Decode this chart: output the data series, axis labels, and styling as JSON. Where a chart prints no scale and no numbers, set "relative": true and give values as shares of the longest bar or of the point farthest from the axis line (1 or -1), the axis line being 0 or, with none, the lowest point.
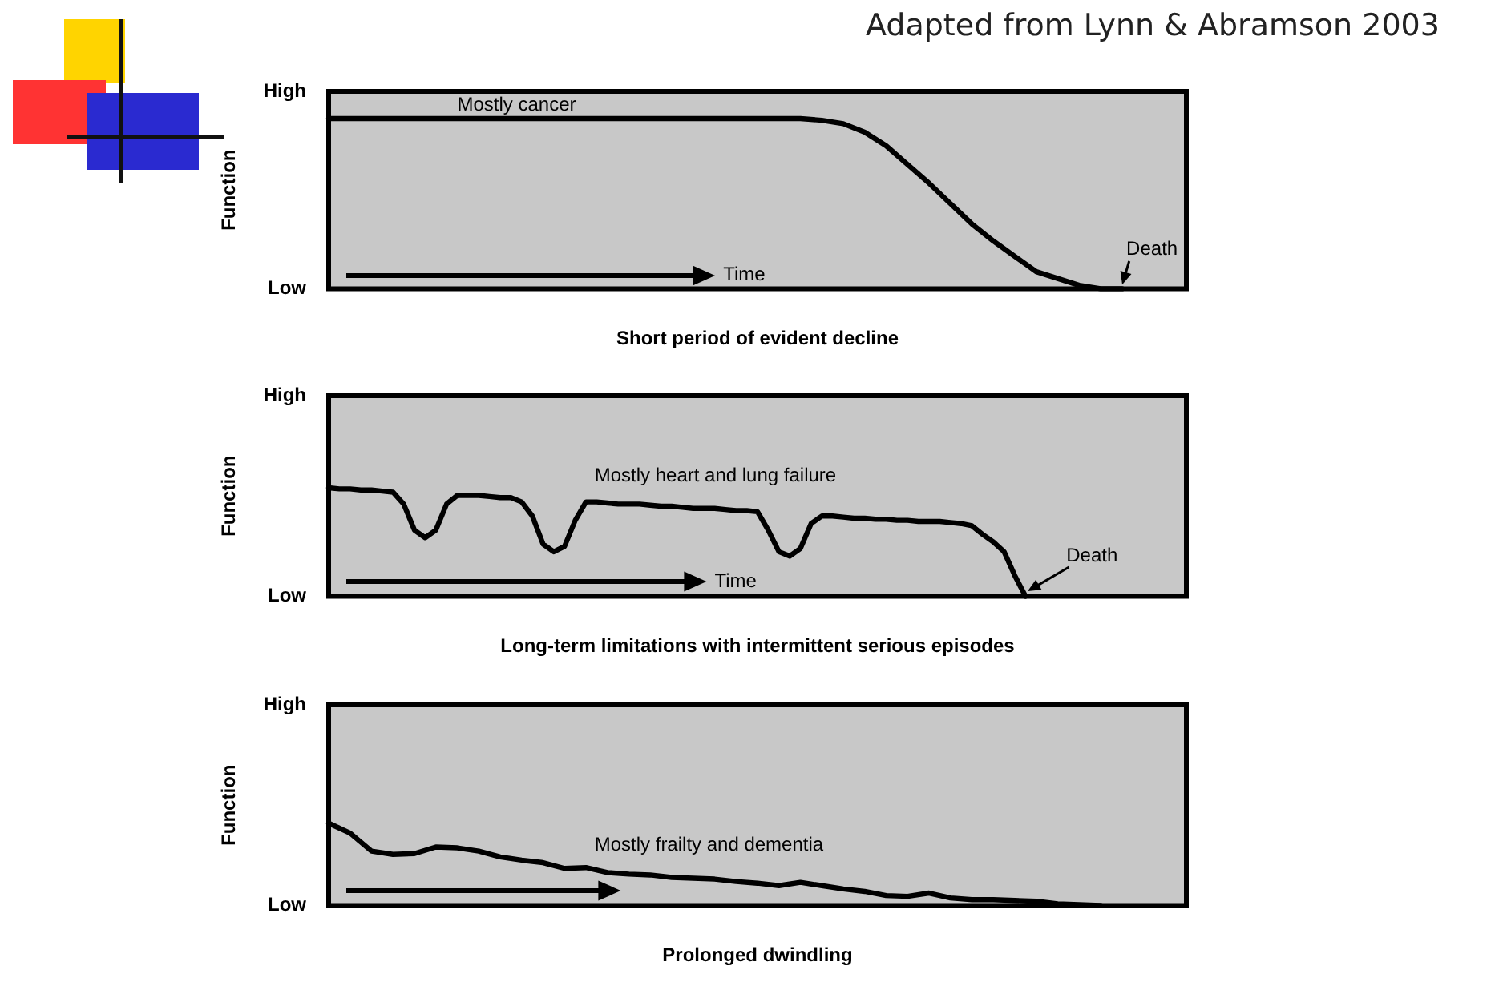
{
  "chart_data": [
    {
      "type": "line",
      "relative": true,
      "xlabel": "Short period of evident decline",
      "ylabel": "Function",
      "legend": false,
      "marker": "none",
      "line_style": "solid",
      "categories": [
        null,
        null,
        null,
        null,
        null,
        null,
        null,
        null,
        null,
        null,
        null,
        null,
        null,
        null,
        null,
        null,
        null,
        null,
        null,
        null,
        null,
        null,
        null,
        null,
        null,
        null,
        null,
        null,
        null,
        null,
        null,
        null,
        null,
        null,
        null,
        null,
        null,
        null,
        null,
        null,
        null
      ],
      "series": [
        {
          "color": "#000000",
          "values": [
            1,
            1,
            1,
            1,
            1,
            1,
            1,
            1,
            1,
            1,
            1,
            1,
            1,
            1,
            1,
            1,
            1,
            1,
            1,
            1,
            1,
            1,
            1,
            0.99,
            0.97,
            0.92,
            0.84,
            0.73,
            0.62,
            0.5,
            0.38,
            0.28,
            0.19,
            0.1,
            0.06,
            0.02,
            0,
            0,
            null,
            null,
            null
          ]
        }
      ],
      "annotations": [
        "Adapted from Lynn & Abramson 2003",
        "High",
        "Low",
        "Mostly cancer",
        "Time",
        "Death"
      ]
    },
    {
      "type": "line",
      "relative": true,
      "xlabel": "Long-term limitations with intermittent serious episodes",
      "ylabel": "Function",
      "legend": false,
      "marker": "none",
      "line_style": "solid",
      "categories": [
        null,
        null,
        null,
        null,
        null,
        null,
        null,
        null,
        null,
        null,
        null,
        null,
        null,
        null,
        null,
        null,
        null,
        null,
        null,
        null,
        null,
        null,
        null,
        null,
        null,
        null,
        null,
        null,
        null,
        null,
        null,
        null,
        null,
        null,
        null,
        null,
        null,
        null,
        null,
        null,
        null,
        null,
        null,
        null,
        null,
        null,
        null,
        null,
        null,
        null,
        null,
        null,
        null,
        null,
        null,
        null,
        null,
        null,
        null,
        null,
        null,
        null,
        null,
        null,
        null,
        null,
        null,
        null,
        null,
        null,
        null,
        null,
        null,
        null,
        null,
        null,
        null,
        null,
        null,
        null,
        null
      ],
      "series": [
        {
          "color": "#000000",
          "values": [
            1,
            0.99,
            0.99,
            0.98,
            0.98,
            0.97,
            0.96,
            0.85,
            0.61,
            0.54,
            0.61,
            0.85,
            0.93,
            0.93,
            0.93,
            0.92,
            0.91,
            0.91,
            0.87,
            0.74,
            0.48,
            0.41,
            0.46,
            0.7,
            0.87,
            0.87,
            0.86,
            0.85,
            0.85,
            0.85,
            0.84,
            0.83,
            0.83,
            0.82,
            0.81,
            0.81,
            0.81,
            0.8,
            0.79,
            0.79,
            0.78,
            0.61,
            0.41,
            0.37,
            0.44,
            0.67,
            0.74,
            0.74,
            0.73,
            0.72,
            0.72,
            0.71,
            0.71,
            0.7,
            0.7,
            0.69,
            0.69,
            0.69,
            0.68,
            0.67,
            0.65,
            0.57,
            0.5,
            0.41,
            0.19,
            0,
            null,
            null,
            null,
            null,
            null,
            null,
            null,
            null,
            null,
            null,
            null,
            null,
            null,
            null,
            null
          ]
        }
      ],
      "annotations": [
        "High",
        "Low",
        "Mostly heart and lung failure",
        "Time",
        "Death"
      ]
    },
    {
      "type": "line",
      "relative": true,
      "xlabel": "Prolonged dwindling",
      "ylabel": "Function",
      "legend": false,
      "marker": "none",
      "line_style": "solid",
      "categories": [
        null,
        null,
        null,
        null,
        null,
        null,
        null,
        null,
        null,
        null,
        null,
        null,
        null,
        null,
        null,
        null,
        null,
        null,
        null,
        null,
        null,
        null,
        null,
        null,
        null,
        null,
        null,
        null,
        null,
        null,
        null,
        null,
        null,
        null,
        null,
        null,
        null,
        null,
        null,
        null,
        null
      ],
      "series": [
        {
          "color": "#000000",
          "values": [
            1,
            0.88,
            0.66,
            0.62,
            0.63,
            0.71,
            0.7,
            0.66,
            0.59,
            0.55,
            0.52,
            0.45,
            0.46,
            0.4,
            0.38,
            0.37,
            0.34,
            0.33,
            0.32,
            0.29,
            0.27,
            0.24,
            0.28,
            0.24,
            0.2,
            0.17,
            0.12,
            0.11,
            0.15,
            0.09,
            0.07,
            0.07,
            0.06,
            0.05,
            0.02,
            0.01,
            0,
            null,
            null,
            null,
            null
          ]
        }
      ],
      "annotations": [
        "High",
        "Low",
        "Mostly frailty and dementia"
      ]
    }
  ]
}
